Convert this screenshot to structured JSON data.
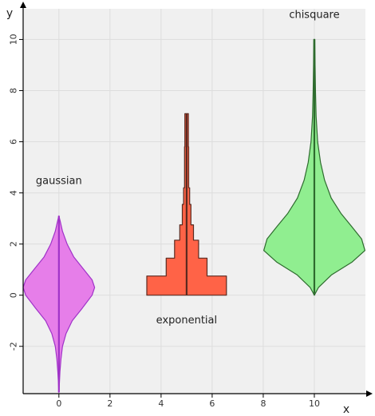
{
  "chart_data": {
    "type": "violin",
    "xlabel": "x",
    "ylabel": "y",
    "xlim": [
      -1.4,
      12.0
    ],
    "ylim": [
      -3.85,
      11.2
    ],
    "xticks": [
      0,
      2,
      4,
      6,
      8,
      10
    ],
    "yticks": [
      -2,
      0,
      2,
      4,
      6,
      8,
      10
    ],
    "xtick_labels": [
      "0",
      "2",
      "4",
      "6",
      "8",
      "10"
    ],
    "ytick_labels": [
      "-2",
      "0",
      "2",
      "4",
      "6",
      "8",
      "10"
    ],
    "grid": true,
    "series": [
      {
        "name": "gaussian",
        "center_x": 0,
        "fill": "#e67ee9",
        "stroke": "#a033c8",
        "profile": [
          [
            -3.8,
            0.0
          ],
          [
            -3.4,
            0.02
          ],
          [
            -3.0,
            0.04
          ],
          [
            -2.5,
            0.08
          ],
          [
            -2.0,
            0.14
          ],
          [
            -1.5,
            0.28
          ],
          [
            -1.0,
            0.52
          ],
          [
            -0.5,
            0.92
          ],
          [
            0.0,
            1.3
          ],
          [
            0.3,
            1.4
          ],
          [
            0.6,
            1.3
          ],
          [
            1.0,
            0.98
          ],
          [
            1.5,
            0.58
          ],
          [
            2.0,
            0.32
          ],
          [
            2.5,
            0.14
          ],
          [
            2.9,
            0.05
          ],
          [
            3.1,
            0.0
          ]
        ]
      },
      {
        "name": "exponential",
        "center_x": 5,
        "fill": "#ff6347",
        "stroke": "#5a2a20",
        "profile": [
          [
            0.0,
            1.56
          ],
          [
            0.75,
            1.56
          ],
          [
            0.75,
            0.8
          ],
          [
            1.45,
            0.8
          ],
          [
            1.45,
            0.47
          ],
          [
            2.15,
            0.47
          ],
          [
            2.15,
            0.27
          ],
          [
            2.75,
            0.27
          ],
          [
            2.75,
            0.17
          ],
          [
            3.55,
            0.17
          ],
          [
            3.55,
            0.12
          ],
          [
            4.2,
            0.12
          ],
          [
            4.2,
            0.08
          ],
          [
            5.8,
            0.08
          ],
          [
            5.8,
            0.07
          ],
          [
            7.1,
            0.07
          ]
        ]
      },
      {
        "name": "chisquare",
        "center_x": 10,
        "fill": "#90ee90",
        "stroke": "#2e6b2e",
        "profile": [
          [
            0.0,
            0.0
          ],
          [
            0.3,
            0.16
          ],
          [
            0.8,
            0.68
          ],
          [
            1.3,
            1.48
          ],
          [
            1.75,
            1.98
          ],
          [
            2.2,
            1.85
          ],
          [
            2.7,
            1.45
          ],
          [
            3.2,
            1.04
          ],
          [
            3.8,
            0.66
          ],
          [
            4.5,
            0.4
          ],
          [
            5.2,
            0.24
          ],
          [
            6.0,
            0.13
          ],
          [
            7.0,
            0.07
          ],
          [
            8.0,
            0.045
          ],
          [
            9.0,
            0.03
          ],
          [
            10.0,
            0.02
          ]
        ]
      }
    ],
    "annotations": [
      {
        "text": "gaussian",
        "x": 0,
        "y": 4.45
      },
      {
        "text": "exponential",
        "x": 5,
        "y": -1.0
      },
      {
        "text": "chisquare",
        "x": 10,
        "y": 10.95
      }
    ]
  }
}
